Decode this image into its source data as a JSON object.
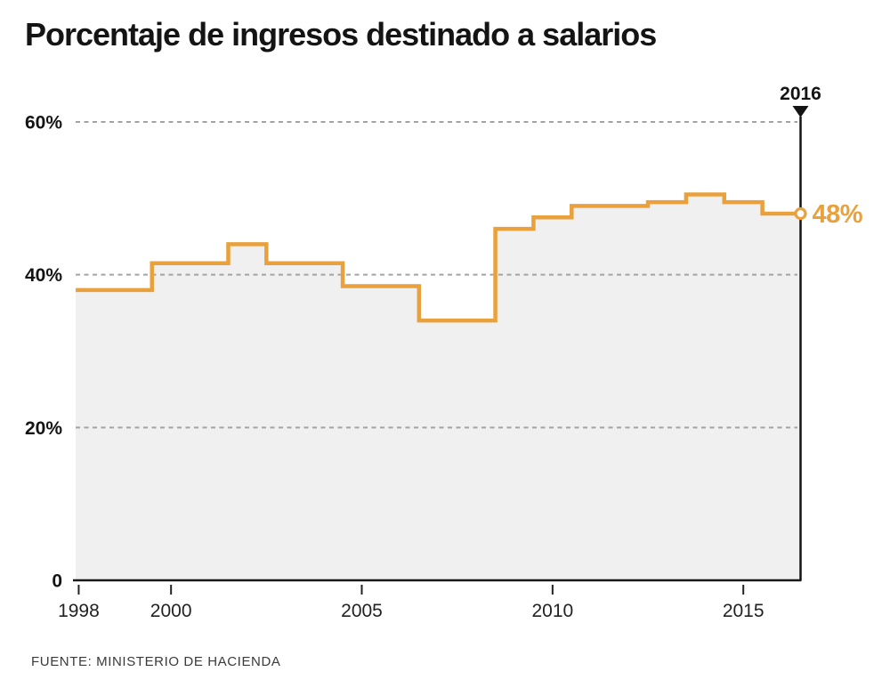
{
  "title": "Porcentaje de ingresos destinado a salarios",
  "source": "FUENTE: MINISTERIO DE HACIENDA",
  "annotation": {
    "year_label": "2016",
    "value_label": "48%"
  },
  "colors": {
    "line": "#E8A13C",
    "area_fill": "#F0F0F0",
    "grid": "#A3A3A3",
    "axis": "#1A1A1A",
    "text": "#141414",
    "tick_text": "#222222",
    "annotation_line": "#141414",
    "source_text": "#3a3a3a",
    "marker_fill": "#FFFFFF"
  },
  "chart_data": {
    "type": "area",
    "subtype": "step-after",
    "title": "Porcentaje de ingresos destinado a salarios",
    "xlabel": "",
    "ylabel": "",
    "x": [
      1998,
      1999,
      2000,
      2001,
      2002,
      2003,
      2004,
      2005,
      2006,
      2007,
      2008,
      2009,
      2010,
      2011,
      2012,
      2013,
      2014,
      2015,
      2016
    ],
    "series": [
      {
        "name": "Porcentaje de ingresos destinado a salarios",
        "values": [
          38,
          38,
          41.5,
          41.5,
          44,
          41.5,
          41.5,
          38.5,
          38.5,
          34,
          34,
          46,
          47.5,
          49,
          49,
          49.5,
          50.5,
          49.5,
          48
        ]
      }
    ],
    "ylim": [
      0,
      60
    ],
    "xlim": [
      1998,
      2016
    ],
    "yticks": [
      {
        "value": 60,
        "label": "60%"
      },
      {
        "value": 40,
        "label": "40%"
      },
      {
        "value": 20,
        "label": "20%"
      },
      {
        "value": 0,
        "label": "0"
      }
    ],
    "xticks": [
      {
        "value": 1998,
        "label": "1998"
      },
      {
        "value": 2000,
        "label": "2000"
      },
      {
        "value": 2005,
        "label": "2005"
      },
      {
        "value": 2010,
        "label": "2010"
      },
      {
        "value": 2015,
        "label": "2015"
      }
    ],
    "grid": "horizontal-dashed",
    "legend": "none",
    "annotations": {
      "vertical_line_year": 2016,
      "year_label": "2016",
      "end_marker": {
        "year": 2016,
        "value": 48,
        "label": "48%"
      }
    }
  }
}
